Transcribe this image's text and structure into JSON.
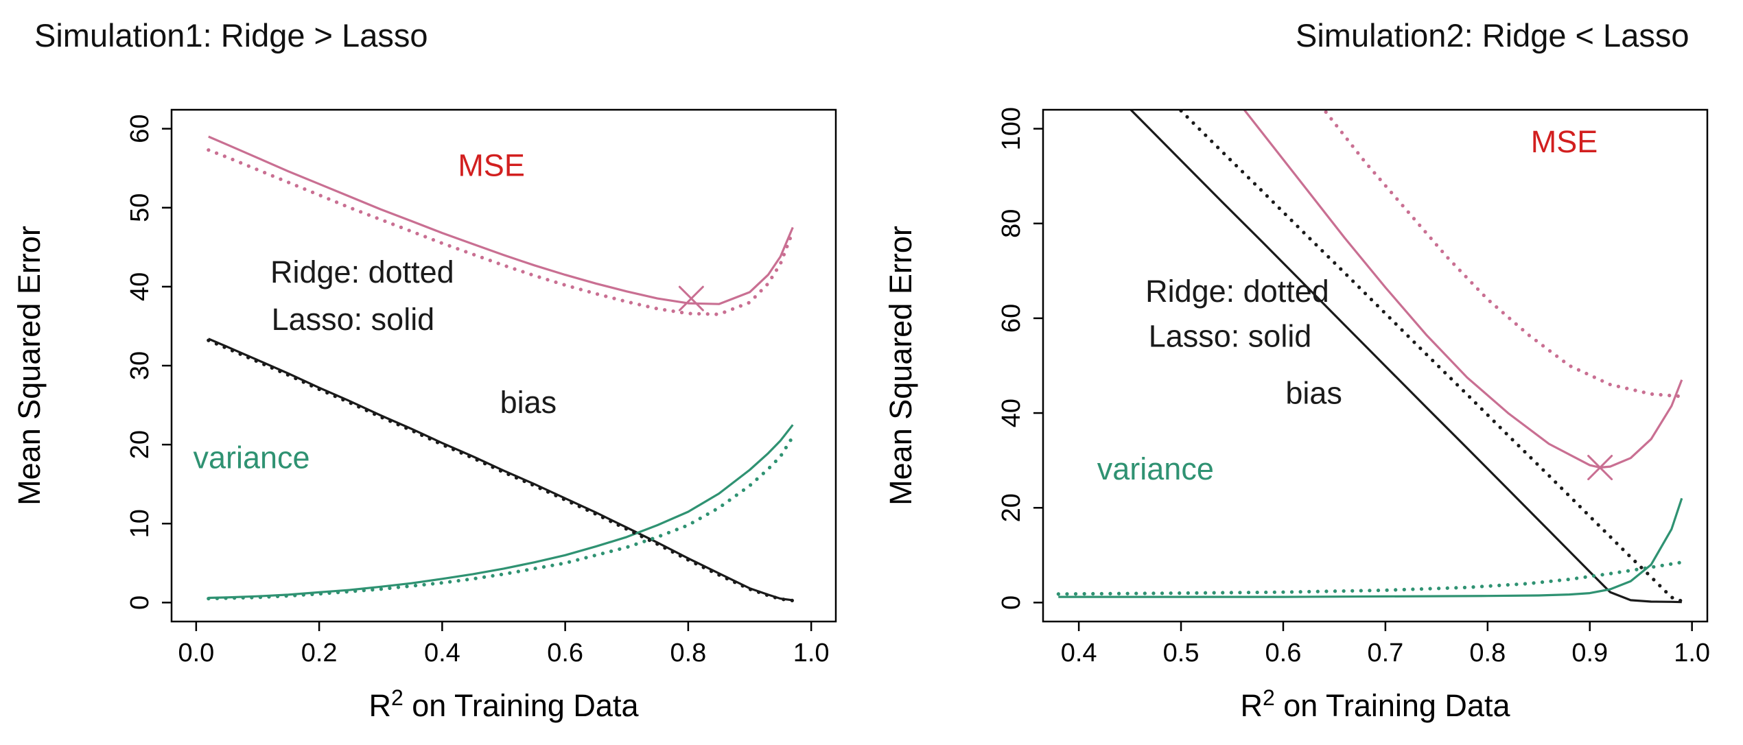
{
  "colors": {
    "mse": "#c96f92",
    "mse_label": "#d21f1f",
    "bias": "#1a1a1a",
    "variance": "#2f9272",
    "axis": "#000000"
  },
  "chart_data": [
    {
      "type": "line",
      "title": "Simulation1: Ridge > Lasso",
      "ylabel": "Mean Squared Error",
      "xlabel": {
        "pre": "R",
        "sup": "2",
        "post": " on Training Data"
      },
      "xlim": [
        -0.04,
        1.04
      ],
      "ylim": [
        -2.4,
        62.4
      ],
      "xticks": [
        0.0,
        0.2,
        0.4,
        0.6,
        0.8,
        1.0
      ],
      "xtick_labels": [
        "0.0",
        "0.2",
        "0.4",
        "0.6",
        "0.8",
        "1.0"
      ],
      "yticks": [
        0,
        10,
        20,
        30,
        40,
        50,
        60
      ],
      "ytick_labels": [
        "0",
        "10",
        "20",
        "30",
        "40",
        "50",
        "60"
      ],
      "grid": false,
      "series": [
        {
          "name": "mse-lasso-solid",
          "label": "MSE (Lasso, solid)",
          "style": "solid",
          "color": "mse",
          "x": [
            0.02,
            0.05,
            0.1,
            0.15,
            0.2,
            0.25,
            0.3,
            0.35,
            0.4,
            0.45,
            0.5,
            0.55,
            0.6,
            0.65,
            0.7,
            0.75,
            0.8,
            0.85,
            0.9,
            0.93,
            0.95,
            0.97
          ],
          "y": [
            59.0,
            58.0,
            56.3,
            54.6,
            53.0,
            51.4,
            49.8,
            48.3,
            46.8,
            45.4,
            44.0,
            42.7,
            41.5,
            40.4,
            39.4,
            38.5,
            37.9,
            37.8,
            39.3,
            41.5,
            43.8,
            47.5
          ]
        },
        {
          "name": "bias-lasso-solid",
          "label": "bias (Lasso, solid)",
          "style": "solid",
          "color": "bias",
          "x": [
            0.02,
            0.05,
            0.1,
            0.15,
            0.2,
            0.25,
            0.3,
            0.35,
            0.4,
            0.45,
            0.5,
            0.55,
            0.6,
            0.65,
            0.7,
            0.75,
            0.8,
            0.85,
            0.9,
            0.93,
            0.95,
            0.97
          ],
          "y": [
            33.4,
            32.4,
            30.7,
            29.0,
            27.2,
            25.5,
            23.7,
            22.0,
            20.2,
            18.5,
            16.7,
            15.0,
            13.2,
            11.4,
            9.5,
            7.6,
            5.6,
            3.7,
            1.8,
            1.0,
            0.5,
            0.3
          ]
        },
        {
          "name": "variance-lasso-solid",
          "label": "variance (Lasso, solid)",
          "style": "solid",
          "color": "variance",
          "x": [
            0.02,
            0.05,
            0.1,
            0.15,
            0.2,
            0.25,
            0.3,
            0.35,
            0.4,
            0.45,
            0.5,
            0.55,
            0.6,
            0.65,
            0.7,
            0.75,
            0.8,
            0.85,
            0.9,
            0.93,
            0.95,
            0.97
          ],
          "y": [
            0.6,
            0.65,
            0.8,
            1.0,
            1.3,
            1.6,
            2.0,
            2.45,
            3.0,
            3.6,
            4.3,
            5.1,
            6.0,
            7.1,
            8.3,
            9.8,
            11.5,
            13.8,
            16.8,
            18.9,
            20.5,
            22.5
          ]
        },
        {
          "name": "mse-ridge-dotted",
          "label": "MSE (Ridge, dotted)",
          "style": "dotted",
          "color": "mse",
          "x": [
            0.02,
            0.05,
            0.1,
            0.15,
            0.2,
            0.25,
            0.3,
            0.35,
            0.4,
            0.45,
            0.5,
            0.55,
            0.6,
            0.65,
            0.7,
            0.75,
            0.8,
            0.85,
            0.9,
            0.93,
            0.95,
            0.97
          ],
          "y": [
            57.3,
            56.4,
            54.8,
            53.2,
            51.6,
            50.0,
            48.5,
            47.0,
            45.5,
            44.1,
            42.7,
            41.4,
            40.2,
            39.1,
            38.1,
            37.2,
            36.6,
            36.5,
            38.0,
            40.4,
            42.9,
            47.0
          ]
        },
        {
          "name": "bias-ridge-dotted",
          "label": "bias (Ridge, dotted)",
          "style": "dotted",
          "color": "bias",
          "x": [
            0.02,
            0.05,
            0.1,
            0.15,
            0.2,
            0.25,
            0.3,
            0.35,
            0.4,
            0.45,
            0.5,
            0.55,
            0.6,
            0.65,
            0.7,
            0.75,
            0.8,
            0.85,
            0.9,
            0.93,
            0.95,
            0.97
          ],
          "y": [
            33.2,
            32.2,
            30.5,
            28.8,
            27.0,
            25.3,
            23.5,
            21.8,
            20.0,
            18.3,
            16.5,
            14.8,
            13.0,
            11.2,
            9.3,
            7.4,
            5.4,
            3.5,
            1.7,
            0.9,
            0.45,
            0.25
          ]
        },
        {
          "name": "variance-ridge-dotted",
          "label": "variance (Ridge, dotted)",
          "style": "dotted",
          "color": "variance",
          "x": [
            0.02,
            0.05,
            0.1,
            0.15,
            0.2,
            0.25,
            0.3,
            0.35,
            0.4,
            0.45,
            0.5,
            0.55,
            0.6,
            0.65,
            0.7,
            0.75,
            0.8,
            0.85,
            0.9,
            0.93,
            0.95,
            0.97
          ],
          "y": [
            0.5,
            0.55,
            0.65,
            0.85,
            1.1,
            1.4,
            1.7,
            2.1,
            2.5,
            3.0,
            3.6,
            4.3,
            5.0,
            6.0,
            7.0,
            8.3,
            9.8,
            12.0,
            14.8,
            16.9,
            18.5,
            21.0
          ]
        }
      ],
      "annotations": [
        {
          "text": "MSE",
          "x": 0.48,
          "y": 54.0,
          "color": "mse_label"
        },
        {
          "text": "Ridge: dotted",
          "x": 0.27,
          "y": 40.5,
          "color": "bias"
        },
        {
          "text": "Lasso: solid",
          "x": 0.255,
          "y": 34.5,
          "color": "bias"
        },
        {
          "text": "bias",
          "x": 0.54,
          "y": 24.0,
          "color": "bias"
        },
        {
          "text": "variance",
          "x": 0.09,
          "y": 17.0,
          "color": "variance"
        }
      ],
      "marker": {
        "shape": "x-cross",
        "x": 0.805,
        "y": 38.5,
        "color": "mse"
      }
    },
    {
      "type": "line",
      "title": "Simulation2: Ridge < Lasso",
      "ylabel": "Mean Squared Error",
      "xlabel": {
        "pre": "R",
        "sup": "2",
        "post": " on Training Data"
      },
      "xlim": [
        0.365,
        1.015
      ],
      "ylim": [
        -4,
        104
      ],
      "xticks": [
        0.4,
        0.5,
        0.6,
        0.7,
        0.8,
        0.9,
        1.0
      ],
      "xtick_labels": [
        "0.4",
        "0.5",
        "0.6",
        "0.7",
        "0.8",
        "0.9",
        "1.0"
      ],
      "yticks": [
        0,
        20,
        40,
        60,
        80,
        100
      ],
      "ytick_labels": [
        "0",
        "20",
        "40",
        "60",
        "80",
        "100"
      ],
      "grid": false,
      "series": [
        {
          "name": "bias-lasso-solid",
          "label": "bias (Lasso, solid)",
          "style": "solid",
          "color": "bias",
          "x": [
            0.38,
            0.42,
            0.46,
            0.5,
            0.54,
            0.58,
            0.62,
            0.66,
            0.7,
            0.74,
            0.78,
            0.82,
            0.86,
            0.9,
            0.92,
            0.94,
            0.96,
            0.98,
            0.99
          ],
          "y": [
            119.4,
            110.7,
            102.0,
            93.3,
            84.6,
            76.0,
            67.3,
            58.6,
            49.9,
            41.2,
            32.6,
            23.9,
            15.2,
            6.5,
            2.2,
            0.5,
            0.2,
            0.15,
            0.1
          ]
        },
        {
          "name": "mse-lasso-solid",
          "label": "MSE (Lasso, solid)",
          "style": "solid",
          "color": "mse",
          "x": [
            0.5,
            0.54,
            0.58,
            0.62,
            0.66,
            0.7,
            0.74,
            0.78,
            0.82,
            0.86,
            0.9,
            0.91,
            0.92,
            0.94,
            0.96,
            0.98,
            0.99
          ],
          "y": [
            120.0,
            110.0,
            99.0,
            88.0,
            77.0,
            66.5,
            56.5,
            47.5,
            40.0,
            33.5,
            29.0,
            28.5,
            28.7,
            30.5,
            34.5,
            41.5,
            47.0
          ]
        },
        {
          "name": "variance-lasso-solid",
          "label": "variance (Lasso, solid)",
          "style": "solid",
          "color": "variance",
          "x": [
            0.38,
            0.5,
            0.6,
            0.7,
            0.8,
            0.85,
            0.88,
            0.9,
            0.92,
            0.94,
            0.96,
            0.98,
            0.99
          ],
          "y": [
            1.2,
            1.2,
            1.2,
            1.3,
            1.4,
            1.5,
            1.7,
            2.0,
            2.8,
            4.5,
            8.0,
            15.5,
            22.0
          ]
        },
        {
          "name": "bias-ridge-dotted",
          "label": "bias (Ridge, dotted)",
          "style": "dotted",
          "color": "bias",
          "x": [
            0.38,
            0.42,
            0.46,
            0.5,
            0.54,
            0.58,
            0.62,
            0.66,
            0.7,
            0.74,
            0.78,
            0.82,
            0.86,
            0.9,
            0.92,
            0.94,
            0.96,
            0.98,
            0.99
          ],
          "y": [
            129.5,
            120.9,
            112.4,
            103.8,
            95.2,
            86.7,
            78.1,
            69.6,
            61.0,
            52.4,
            43.9,
            35.3,
            26.8,
            18.2,
            13.9,
            9.6,
            5.4,
            1.1,
            0.3
          ]
        },
        {
          "name": "mse-ridge-dotted",
          "label": "MSE (Ridge, dotted)",
          "style": "dotted",
          "color": "mse",
          "x": [
            0.6,
            0.64,
            0.68,
            0.72,
            0.76,
            0.8,
            0.84,
            0.88,
            0.92,
            0.96,
            0.99
          ],
          "y": [
            115.0,
            104.0,
            93.0,
            83.0,
            73.0,
            64.0,
            56.5,
            50.0,
            46.0,
            44.0,
            43.5
          ]
        },
        {
          "name": "variance-ridge-dotted",
          "label": "variance (Ridge, dotted)",
          "style": "dotted",
          "color": "variance",
          "x": [
            0.38,
            0.5,
            0.6,
            0.7,
            0.78,
            0.84,
            0.88,
            0.92,
            0.95,
            0.97,
            0.99
          ],
          "y": [
            1.8,
            2.0,
            2.2,
            2.6,
            3.2,
            4.0,
            4.9,
            6.1,
            7.1,
            7.8,
            8.5
          ]
        }
      ],
      "annotations": [
        {
          "text": "MSE",
          "x": 0.875,
          "y": 95.0,
          "color": "mse_label"
        },
        {
          "text": "Ridge: dotted",
          "x": 0.555,
          "y": 63.5,
          "color": "bias"
        },
        {
          "text": "Lasso: solid",
          "x": 0.548,
          "y": 54.0,
          "color": "bias"
        },
        {
          "text": "bias",
          "x": 0.63,
          "y": 42.0,
          "color": "bias"
        },
        {
          "text": "variance",
          "x": 0.475,
          "y": 26.0,
          "color": "variance"
        }
      ],
      "marker": {
        "shape": "x-cross",
        "x": 0.91,
        "y": 28.5,
        "color": "mse"
      }
    }
  ]
}
